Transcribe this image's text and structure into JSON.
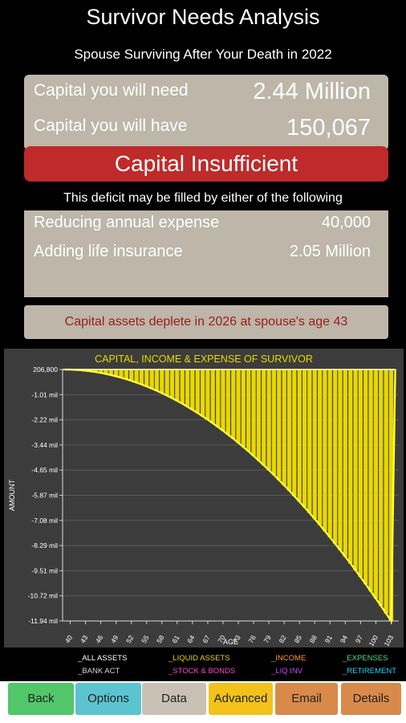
{
  "header": {
    "title": "Survivor Needs Analysis",
    "subtitle": "Spouse Surviving After Your Death in 2022"
  },
  "capital": {
    "need_label": "Capital you will need",
    "need_value": "2.44 Million",
    "have_label": "Capital you will have",
    "have_value": "150,067",
    "status": "Capital Insufficient"
  },
  "deficit": {
    "intro": "This deficit may be filled by either of the following",
    "expense_label": "Reducing annual expense",
    "expense_value": "40,000",
    "insurance_label": "Adding life insurance",
    "insurance_value": "2.05 Million"
  },
  "depletion_message": "Capital assets deplete in 2026 at spouse's age 43",
  "chart_data": {
    "type": "bar",
    "title": "CAPITAL, INCOME & EXPENSE OF SURVIVOR",
    "xlabel": "AGE",
    "ylabel": "AMOUNT",
    "y_ticks": [
      "206,800",
      "-1.01 mil",
      "-2.22 mil",
      "-3.44 mil",
      "-4.65 mil",
      "-5.87 mil",
      "-7.08 mil",
      "-8.29 mil",
      "-9.51 mil",
      "-10.72 mil",
      "-11.94 mil"
    ],
    "x_ticks": [
      "40",
      "43",
      "46",
      "49",
      "52",
      "55",
      "58",
      "61",
      "64",
      "67",
      "70",
      "73",
      "76",
      "79",
      "82",
      "85",
      "88",
      "91",
      "94",
      "97",
      "100",
      "103"
    ],
    "ylim": [
      -11940000,
      206800
    ],
    "age_start": 39,
    "age_end": 104,
    "series": [
      {
        "name": "_LIQUID ASSETS",
        "color": "#e8d800",
        "note": "bars from 206,800 declining to approx -11.94 mil at age 104"
      }
    ],
    "curve_color": "#ffff33",
    "grid": true
  },
  "legend": [
    {
      "label": "_ALL ASSETS",
      "color": "#ffffff"
    },
    {
      "label": "_LIQUID ASSETS",
      "color": "#e8d800"
    },
    {
      "label": "_INCOME",
      "color": "#ff9a30"
    },
    {
      "label": "_EXPENSES",
      "color": "#44dd88"
    },
    {
      "label": "_BANK ACT",
      "color": "#d8d8d8"
    },
    {
      "label": "_STOCK & BONDS",
      "color": "#ff44cc"
    },
    {
      "label": "_LIQ INV",
      "color": "#cc44ff"
    },
    {
      "label": "_RETIREMENT",
      "color": "#33ccff"
    }
  ],
  "footer": {
    "buttons": [
      {
        "label": "Back",
        "color": "#52c76a"
      },
      {
        "label": "Options",
        "color": "#5bc4cf"
      },
      {
        "label": "Data",
        "color": "#c9c2b4"
      },
      {
        "label": "Advanced",
        "color": "#f2c21b"
      },
      {
        "label": "Email",
        "color": "#d98a4a"
      },
      {
        "label": "Details",
        "color": "#d98a4a"
      }
    ]
  }
}
